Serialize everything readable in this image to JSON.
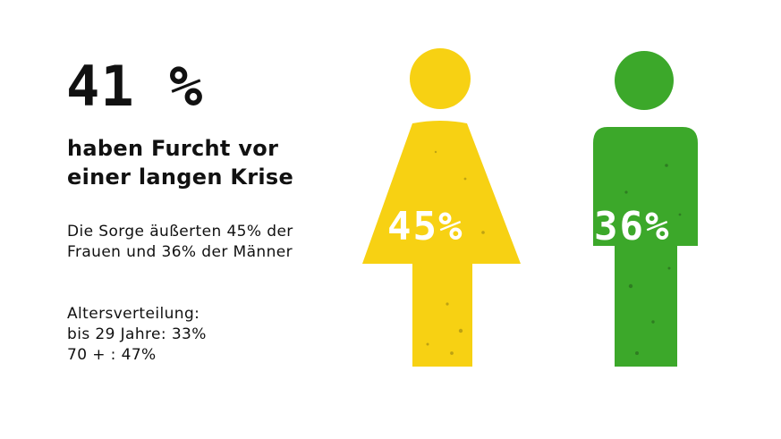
{
  "headline": "41 %",
  "subheadline": [
    "haben Furcht vor",
    "einer langen Krise"
  ],
  "concern_text": [
    "Die Sorge äußerten 45% der",
    "Frauen und 36% der Männer"
  ],
  "age_distribution": {
    "title": "Altersverteilung:",
    "lines": [
      "bis  29 Jahre: 33%",
      "70 + : 47%"
    ]
  },
  "figures": {
    "women": {
      "value": "45%",
      "color": "#f7d113"
    },
    "men": {
      "value": "36%",
      "color": "#3ca82a"
    }
  }
}
